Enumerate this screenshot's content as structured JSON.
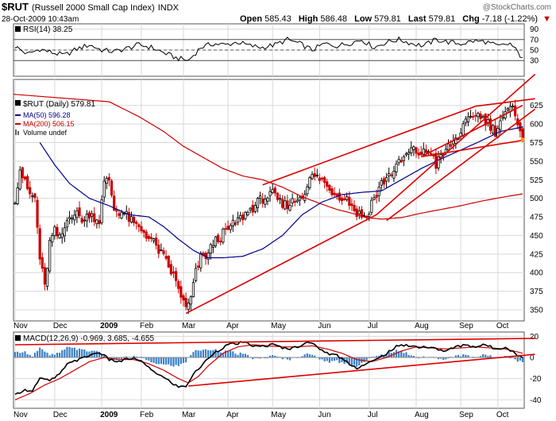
{
  "header": {
    "symbol": "$RUT",
    "name": "(Russell 2000 Small Cap Index)",
    "exchange": "INDX",
    "timestamp": "28-Oct-2009 10:43am",
    "watermark": "@StockCharts.com",
    "open_label": "Open",
    "open": "585.43",
    "high_label": "High",
    "high": "586.48",
    "low_label": "Low",
    "low": "579.81",
    "last_label": "Last",
    "last": "579.81",
    "chg_label": "Chg",
    "chg": "-7.18 (-1.22%)",
    "chg_arrow": "▼"
  },
  "colors": {
    "price": "#000000",
    "bear": "#cc0000",
    "ma50": "#00008b",
    "ma200": "#cc0000",
    "trend": "#dd0000",
    "volume": "#3a80c8",
    "grid": "#d8d8d8"
  },
  "chart_data": [
    {
      "type": "line",
      "name": "rsi",
      "legend": "RSI(14) 38.25",
      "ylim": [
        0,
        100
      ],
      "yticks": [
        30,
        50,
        70,
        90
      ],
      "levels": [
        30,
        50,
        70
      ],
      "anchors": [
        [
          0,
          57
        ],
        [
          5,
          42
        ],
        [
          10,
          52
        ],
        [
          15,
          45
        ],
        [
          20,
          40
        ],
        [
          25,
          52
        ],
        [
          30,
          60
        ],
        [
          35,
          50
        ],
        [
          40,
          47
        ],
        [
          45,
          53
        ],
        [
          50,
          60
        ],
        [
          55,
          55
        ],
        [
          60,
          45
        ],
        [
          65,
          35
        ],
        [
          70,
          30
        ],
        [
          75,
          55
        ],
        [
          80,
          62
        ],
        [
          85,
          60
        ],
        [
          90,
          65
        ],
        [
          95,
          58
        ],
        [
          100,
          55
        ],
        [
          105,
          60
        ],
        [
          110,
          70
        ],
        [
          115,
          62
        ],
        [
          120,
          50
        ],
        [
          125,
          62
        ],
        [
          130,
          58
        ],
        [
          135,
          63
        ],
        [
          140,
          70
        ],
        [
          145,
          55
        ],
        [
          150,
          65
        ],
        [
          155,
          70
        ],
        [
          160,
          63
        ],
        [
          165,
          58
        ],
        [
          170,
          70
        ],
        [
          175,
          65
        ],
        [
          180,
          62
        ],
        [
          185,
          67
        ],
        [
          190,
          66
        ],
        [
          195,
          57
        ],
        [
          200,
          62
        ],
        [
          204,
          40
        ],
        [
          205,
          38
        ]
      ]
    },
    {
      "type": "candlestick",
      "name": "price",
      "legend": "$RUT (Daily) 579.81",
      "ylim": [
        335,
        660
      ],
      "yticks": [
        350,
        375,
        400,
        425,
        450,
        475,
        500,
        525,
        550,
        575,
        600,
        625
      ],
      "close_anchors": [
        [
          0,
          500
        ],
        [
          2,
          540
        ],
        [
          4,
          520
        ],
        [
          6,
          505
        ],
        [
          8,
          500
        ],
        [
          10,
          420
        ],
        [
          12,
          380
        ],
        [
          14,
          440
        ],
        [
          16,
          455
        ],
        [
          18,
          445
        ],
        [
          20,
          460
        ],
        [
          22,
          480
        ],
        [
          25,
          478
        ],
        [
          28,
          470
        ],
        [
          30,
          480
        ],
        [
          34,
          470
        ],
        [
          36,
          520
        ],
        [
          38,
          525
        ],
        [
          40,
          485
        ],
        [
          44,
          480
        ],
        [
          48,
          465
        ],
        [
          52,
          455
        ],
        [
          56,
          440
        ],
        [
          60,
          420
        ],
        [
          64,
          395
        ],
        [
          67,
          370
        ],
        [
          69,
          350
        ],
        [
          71,
          365
        ],
        [
          73,
          400
        ],
        [
          75,
          420
        ],
        [
          78,
          425
        ],
        [
          80,
          440
        ],
        [
          85,
          455
        ],
        [
          90,
          470
        ],
        [
          95,
          485
        ],
        [
          100,
          500
        ],
        [
          104,
          505
        ],
        [
          108,
          490
        ],
        [
          112,
          495
        ],
        [
          116,
          505
        ],
        [
          120,
          530
        ],
        [
          124,
          525
        ],
        [
          126,
          515
        ],
        [
          130,
          505
        ],
        [
          134,
          500
        ],
        [
          138,
          480
        ],
        [
          142,
          475
        ],
        [
          144,
          495
        ],
        [
          146,
          505
        ],
        [
          148,
          520
        ],
        [
          152,
          535
        ],
        [
          156,
          550
        ],
        [
          160,
          565
        ],
        [
          164,
          560
        ],
        [
          168,
          565
        ],
        [
          170,
          545
        ],
        [
          174,
          565
        ],
        [
          178,
          580
        ],
        [
          182,
          600
        ],
        [
          186,
          615
        ],
        [
          190,
          605
        ],
        [
          194,
          590
        ],
        [
          196,
          605
        ],
        [
          200,
          620
        ],
        [
          202,
          615
        ],
        [
          204,
          595
        ],
        [
          205,
          580
        ]
      ],
      "ma50": {
        "legend": "MA(50) 596.28",
        "anchors": [
          [
            10,
            575
          ],
          [
            16,
            545
          ],
          [
            22,
            520
          ],
          [
            30,
            500
          ],
          [
            38,
            490
          ],
          [
            46,
            478
          ],
          [
            54,
            475
          ],
          [
            60,
            462
          ],
          [
            66,
            445
          ],
          [
            72,
            430
          ],
          [
            78,
            420
          ],
          [
            84,
            420
          ],
          [
            92,
            422
          ],
          [
            100,
            432
          ],
          [
            108,
            450
          ],
          [
            116,
            478
          ],
          [
            124,
            495
          ],
          [
            132,
            505
          ],
          [
            140,
            508
          ],
          [
            148,
            510
          ],
          [
            156,
            525
          ],
          [
            164,
            540
          ],
          [
            172,
            553
          ],
          [
            180,
            565
          ],
          [
            188,
            577
          ],
          [
            196,
            590
          ],
          [
            205,
            596
          ]
        ]
      },
      "ma200": {
        "legend": "MA(200) 506.15",
        "anchors": [
          [
            38,
            630
          ],
          [
            50,
            610
          ],
          [
            60,
            590
          ],
          [
            68,
            570
          ],
          [
            76,
            555
          ],
          [
            84,
            540
          ],
          [
            92,
            530
          ],
          [
            100,
            525
          ],
          [
            108,
            515
          ],
          [
            116,
            502
          ],
          [
            124,
            492
          ],
          [
            130,
            485
          ],
          [
            136,
            480
          ],
          [
            142,
            474
          ],
          [
            148,
            472
          ],
          [
            156,
            474
          ],
          [
            164,
            480
          ],
          [
            172,
            485
          ],
          [
            180,
            490
          ],
          [
            188,
            496
          ],
          [
            196,
            501
          ],
          [
            205,
            506
          ]
        ]
      },
      "volume_legend": "Volume undef",
      "trendlines": [
        [
          [
            69,
            345
          ],
          [
            146,
            478
          ],
          [
            210,
            667
          ]
        ],
        [
          [
            100,
            518
          ],
          [
            186,
            624
          ]
        ],
        [
          [
            186,
            624
          ],
          [
            210,
            634
          ]
        ],
        [
          [
            164,
            556
          ],
          [
            205,
            578
          ]
        ],
        [
          [
            164,
            556
          ],
          [
            205,
            625
          ]
        ],
        [
          [
            150,
            470
          ],
          [
            210,
            620
          ]
        ]
      ]
    },
    {
      "type": "macd",
      "name": "macd",
      "legend": "MACD(12,26,9) -0.969, 3.685, -4.655",
      "ylim": [
        -48,
        24
      ],
      "yticks": [
        -40,
        -20,
        0,
        20
      ],
      "macd_anchors": [
        [
          0,
          -36
        ],
        [
          3,
          -31
        ],
        [
          7,
          -31
        ],
        [
          10,
          -20
        ],
        [
          14,
          -22
        ],
        [
          18,
          -16
        ],
        [
          22,
          -4
        ],
        [
          26,
          -2
        ],
        [
          30,
          2
        ],
        [
          34,
          5
        ],
        [
          38,
          -2
        ],
        [
          42,
          -4
        ],
        [
          46,
          -1
        ],
        [
          50,
          -2
        ],
        [
          54,
          -10
        ],
        [
          58,
          -16
        ],
        [
          62,
          -22
        ],
        [
          66,
          -28
        ],
        [
          69,
          -27
        ],
        [
          72,
          -16
        ],
        [
          76,
          -6
        ],
        [
          80,
          4
        ],
        [
          86,
          12
        ],
        [
          92,
          14
        ],
        [
          98,
          10
        ],
        [
          104,
          12
        ],
        [
          110,
          8
        ],
        [
          114,
          10
        ],
        [
          118,
          15
        ],
        [
          122,
          10
        ],
        [
          126,
          4
        ],
        [
          130,
          2
        ],
        [
          134,
          -4
        ],
        [
          138,
          -10
        ],
        [
          142,
          -6
        ],
        [
          146,
          -2
        ],
        [
          150,
          4
        ],
        [
          154,
          10
        ],
        [
          158,
          12
        ],
        [
          162,
          10
        ],
        [
          166,
          10
        ],
        [
          170,
          8
        ],
        [
          174,
          6
        ],
        [
          178,
          10
        ],
        [
          182,
          12
        ],
        [
          186,
          10
        ],
        [
          190,
          12
        ],
        [
          194,
          8
        ],
        [
          198,
          10
        ],
        [
          202,
          4
        ],
        [
          205,
          -1
        ]
      ],
      "signal_anchors": [
        [
          0,
          -40
        ],
        [
          6,
          -34
        ],
        [
          12,
          -26
        ],
        [
          18,
          -20
        ],
        [
          24,
          -12
        ],
        [
          30,
          -4
        ],
        [
          36,
          0
        ],
        [
          42,
          -2
        ],
        [
          48,
          -2
        ],
        [
          54,
          -6
        ],
        [
          60,
          -12
        ],
        [
          66,
          -20
        ],
        [
          70,
          -24
        ],
        [
          74,
          -18
        ],
        [
          78,
          -8
        ],
        [
          84,
          4
        ],
        [
          90,
          10
        ],
        [
          96,
          12
        ],
        [
          102,
          11
        ],
        [
          108,
          10
        ],
        [
          114,
          10
        ],
        [
          120,
          11
        ],
        [
          126,
          8
        ],
        [
          132,
          4
        ],
        [
          138,
          -2
        ],
        [
          144,
          -4
        ],
        [
          150,
          0
        ],
        [
          156,
          6
        ],
        [
          162,
          10
        ],
        [
          168,
          9
        ],
        [
          174,
          8
        ],
        [
          180,
          9
        ],
        [
          186,
          10
        ],
        [
          192,
          9
        ],
        [
          198,
          8
        ],
        [
          205,
          4
        ]
      ],
      "trendlines": [
        [
          [
            70,
            -27
          ],
          [
            210,
            3
          ]
        ],
        [
          [
            0,
            12
          ],
          [
            210,
            18
          ]
        ]
      ]
    }
  ],
  "x_axis": {
    "labels": [
      {
        "text": "Nov",
        "i": 0,
        "bold": false
      },
      {
        "text": "Dec",
        "i": 16,
        "bold": false
      },
      {
        "text": "2009",
        "i": 35,
        "bold": true
      },
      {
        "text": "Feb",
        "i": 51,
        "bold": false
      },
      {
        "text": "Mar",
        "i": 68,
        "bold": false
      },
      {
        "text": "Apr",
        "i": 86,
        "bold": false
      },
      {
        "text": "May",
        "i": 104,
        "bold": false
      },
      {
        "text": "Jun",
        "i": 123,
        "bold": false
      },
      {
        "text": "Jul",
        "i": 143,
        "bold": false
      },
      {
        "text": "Aug",
        "i": 162,
        "bold": false
      },
      {
        "text": "Sep",
        "i": 180,
        "bold": false
      },
      {
        "text": "Oct",
        "i": 195,
        "bold": false
      }
    ],
    "count": 206
  }
}
